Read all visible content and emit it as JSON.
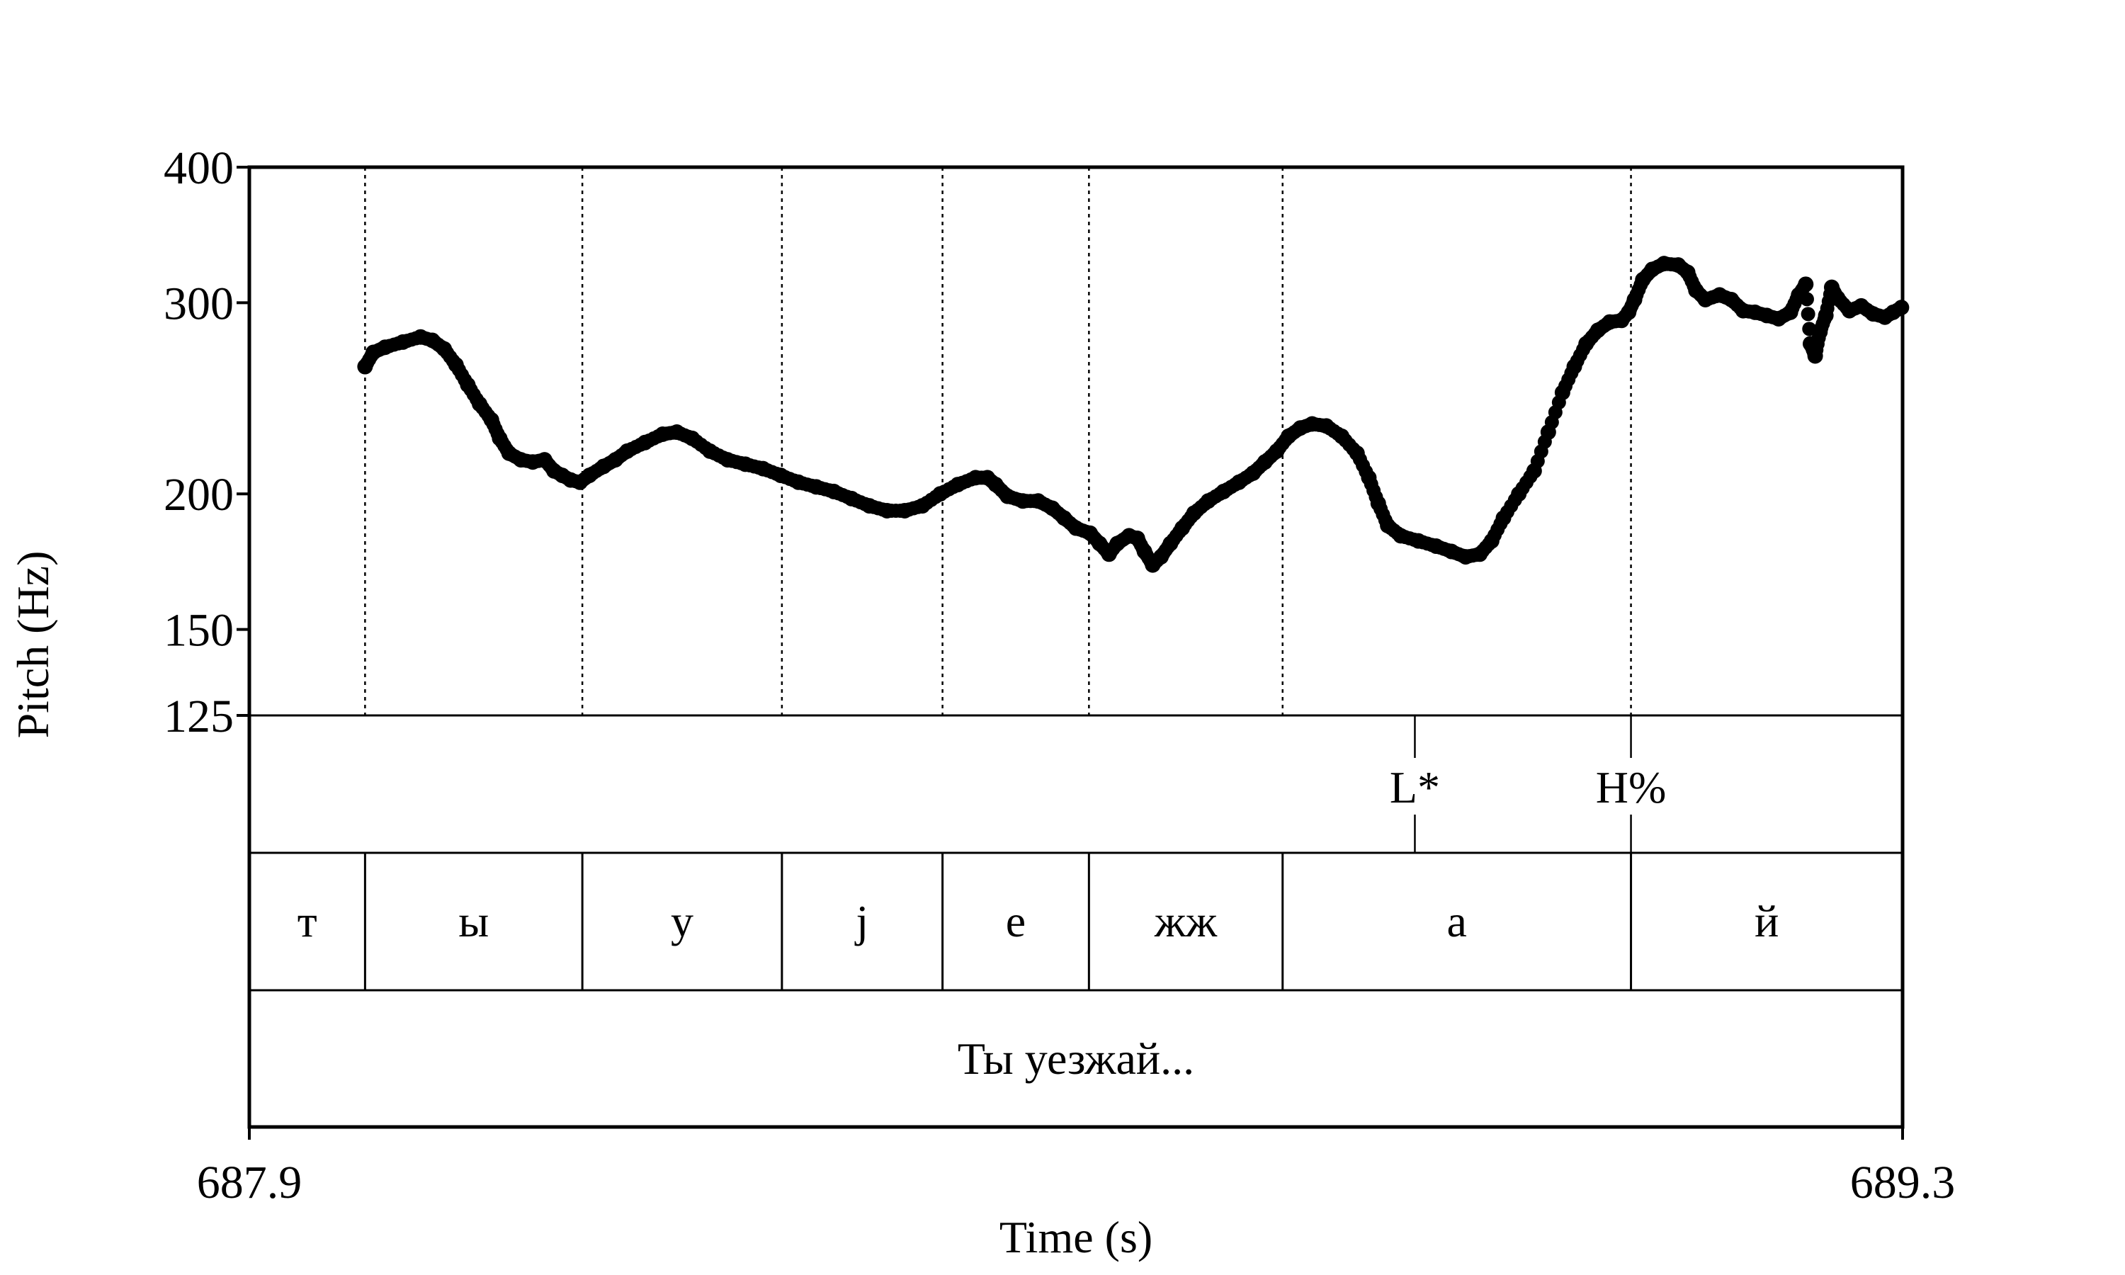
{
  "chart_data": {
    "type": "scatter",
    "xlabel": "Time (s)",
    "ylabel": "Pitch (Hz)",
    "xlim": [
      687.9,
      689.3
    ],
    "ylim": [
      125,
      400
    ],
    "y_scale": "log",
    "x_ticks": [
      687.9,
      689.3
    ],
    "y_ticks": [
      125,
      150,
      200,
      300,
      400
    ],
    "segment_boundaries": [
      687.998,
      688.182,
      688.351,
      688.487,
      688.611,
      688.775,
      689.07
    ],
    "tones": [
      {
        "label": "L*",
        "time": 688.887
      },
      {
        "label": "H%",
        "time": 689.07
      }
    ],
    "segments": [
      {
        "label": "т",
        "start": 687.9,
        "end": 687.998
      },
      {
        "label": "ы",
        "start": 687.998,
        "end": 688.182
      },
      {
        "label": "у",
        "start": 688.182,
        "end": 688.351
      },
      {
        "label": "j",
        "start": 688.351,
        "end": 688.487
      },
      {
        "label": "е",
        "start": 688.487,
        "end": 688.611
      },
      {
        "label": "жж",
        "start": 688.611,
        "end": 688.775
      },
      {
        "label": "а",
        "start": 688.775,
        "end": 689.07
      },
      {
        "label": "й",
        "start": 689.07,
        "end": 689.3
      }
    ],
    "phrase": "Ты уезжай...",
    "contour": [
      [
        687.998,
        262
      ],
      [
        688.005,
        270
      ],
      [
        688.015,
        273
      ],
      [
        688.03,
        276
      ],
      [
        688.045,
        279
      ],
      [
        688.055,
        277
      ],
      [
        688.065,
        272
      ],
      [
        688.075,
        263
      ],
      [
        688.085,
        252
      ],
      [
        688.095,
        242
      ],
      [
        688.105,
        234
      ],
      [
        688.112,
        225
      ],
      [
        688.12,
        218
      ],
      [
        688.13,
        215
      ],
      [
        688.14,
        214
      ],
      [
        688.15,
        215
      ],
      [
        688.158,
        210
      ],
      [
        688.165,
        208
      ],
      [
        688.172,
        206
      ],
      [
        688.18,
        205
      ],
      [
        688.188,
        208
      ],
      [
        688.2,
        212
      ],
      [
        688.21,
        215
      ],
      [
        688.22,
        219
      ],
      [
        688.235,
        223
      ],
      [
        688.25,
        227
      ],
      [
        688.262,
        228
      ],
      [
        688.275,
        225
      ],
      [
        688.29,
        219
      ],
      [
        688.305,
        215
      ],
      [
        688.32,
        213
      ],
      [
        688.335,
        211
      ],
      [
        688.35,
        208
      ],
      [
        688.365,
        205
      ],
      [
        688.38,
        203
      ],
      [
        688.395,
        201
      ],
      [
        688.41,
        198
      ],
      [
        688.425,
        195
      ],
      [
        688.44,
        193
      ],
      [
        688.455,
        193
      ],
      [
        688.47,
        195
      ],
      [
        688.485,
        200
      ],
      [
        688.5,
        204
      ],
      [
        688.515,
        207
      ],
      [
        688.525,
        207
      ],
      [
        688.532,
        204
      ],
      [
        688.542,
        199
      ],
      [
        688.555,
        197
      ],
      [
        688.568,
        197
      ],
      [
        688.58,
        194
      ],
      [
        688.59,
        190
      ],
      [
        688.6,
        186
      ],
      [
        688.612,
        184
      ],
      [
        688.62,
        180
      ],
      [
        688.628,
        176
      ],
      [
        688.635,
        180
      ],
      [
        688.645,
        183
      ],
      [
        688.652,
        182
      ],
      [
        688.658,
        177
      ],
      [
        688.665,
        172
      ],
      [
        688.672,
        175
      ],
      [
        688.68,
        180
      ],
      [
        688.69,
        186
      ],
      [
        688.7,
        192
      ],
      [
        688.712,
        197
      ],
      [
        688.725,
        201
      ],
      [
        688.738,
        205
      ],
      [
        688.75,
        209
      ],
      [
        688.76,
        214
      ],
      [
        688.77,
        219
      ],
      [
        688.78,
        226
      ],
      [
        688.79,
        230
      ],
      [
        688.8,
        232
      ],
      [
        688.812,
        231
      ],
      [
        688.825,
        226
      ],
      [
        688.838,
        218
      ],
      [
        688.848,
        207
      ],
      [
        688.856,
        196
      ],
      [
        688.864,
        187
      ],
      [
        688.875,
        183
      ],
      [
        688.89,
        181
      ],
      [
        688.905,
        179
      ],
      [
        688.918,
        177
      ],
      [
        688.93,
        175
      ],
      [
        688.942,
        176
      ],
      [
        688.952,
        181
      ],
      [
        688.962,
        190
      ],
      [
        688.975,
        200
      ],
      [
        688.988,
        210
      ],
      [
        689.0,
        228
      ],
      [
        689.012,
        248
      ],
      [
        689.022,
        262
      ],
      [
        689.032,
        275
      ],
      [
        689.042,
        283
      ],
      [
        689.052,
        288
      ],
      [
        689.062,
        289
      ],
      [
        689.068,
        294
      ],
      [
        689.073,
        302
      ],
      [
        689.08,
        315
      ],
      [
        689.088,
        322
      ],
      [
        689.098,
        326
      ],
      [
        689.11,
        325
      ],
      [
        689.118,
        320
      ],
      [
        689.125,
        308
      ],
      [
        689.133,
        302
      ],
      [
        689.145,
        305
      ],
      [
        689.155,
        302
      ],
      [
        689.165,
        295
      ],
      [
        689.175,
        294
      ],
      [
        689.185,
        292
      ],
      [
        689.195,
        290
      ],
      [
        689.205,
        294
      ],
      [
        689.212,
        305
      ],
      [
        689.218,
        312
      ],
      [
        689.222,
        275
      ],
      [
        689.226,
        268
      ],
      [
        689.23,
        282
      ],
      [
        689.235,
        292
      ],
      [
        689.24,
        310
      ],
      [
        689.245,
        303
      ],
      [
        689.255,
        295
      ],
      [
        689.265,
        298
      ],
      [
        689.275,
        293
      ],
      [
        689.285,
        291
      ],
      [
        689.292,
        294
      ],
      [
        689.299,
        297
      ]
    ]
  }
}
